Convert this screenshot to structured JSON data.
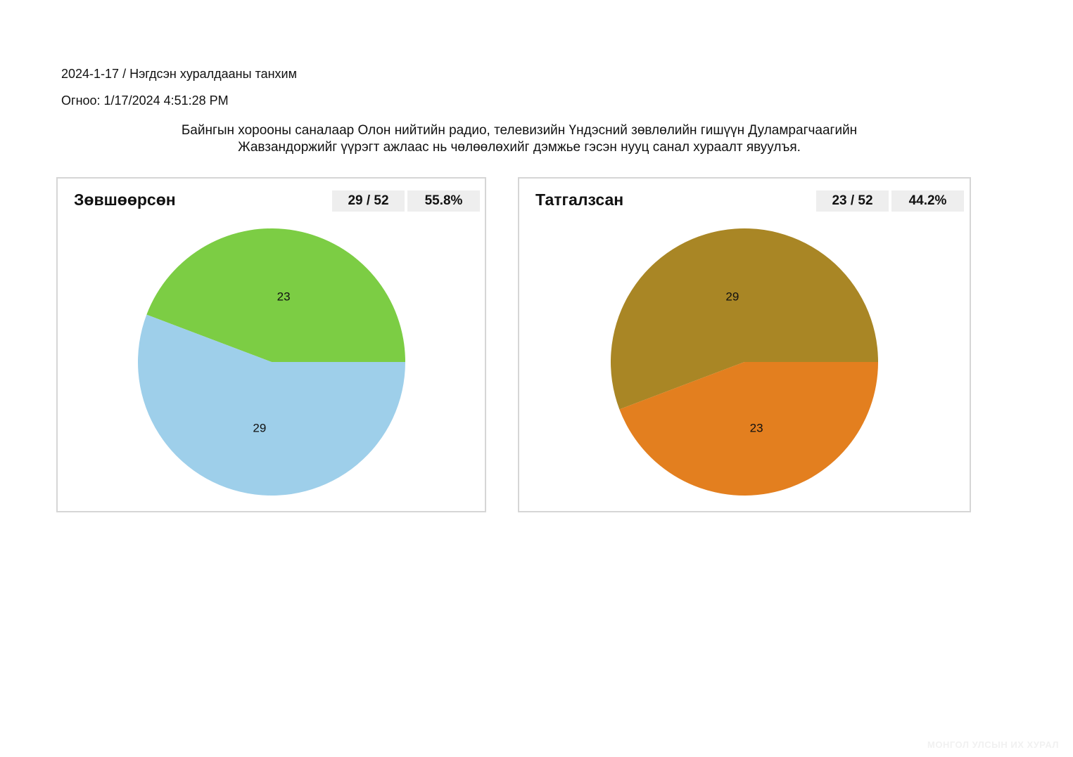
{
  "header": {
    "session_line": "2024-1-17 / Нэгдсэн хуралдааны танхим",
    "date_line": "Огноо: 1/17/2024 4:51:28 PM"
  },
  "motion": {
    "line1": "Байнгын хорооны саналаар Олон нийтийн радио, телевизийн Үндэсний зөвлөлийн гишүүн Дуламрагчаагийн",
    "line2": "Жавзандоржийг үүрэгт ажлаас нь чөлөөлөхийг дэмжье гэсэн нууц санал хураалт явуулъя."
  },
  "footer": {
    "watermark": "МОНГОЛ УЛСЫН ИХ ХУРАЛ"
  },
  "chart_data": [
    {
      "type": "pie",
      "title": "Зөвшөөрсөн",
      "count_label": "29 / 52",
      "percent_label": "55.8%",
      "slices": [
        {
          "value": 23,
          "label": "23",
          "color": "#7ccd44"
        },
        {
          "value": 29,
          "label": "29",
          "color": "#9ecfea"
        }
      ]
    },
    {
      "type": "pie",
      "title": "Татгалзсан",
      "count_label": "23 / 52",
      "percent_label": "44.2%",
      "slices": [
        {
          "value": 29,
          "label": "29",
          "color": "#a98625"
        },
        {
          "value": 23,
          "label": "23",
          "color": "#e37f1f"
        }
      ]
    }
  ]
}
